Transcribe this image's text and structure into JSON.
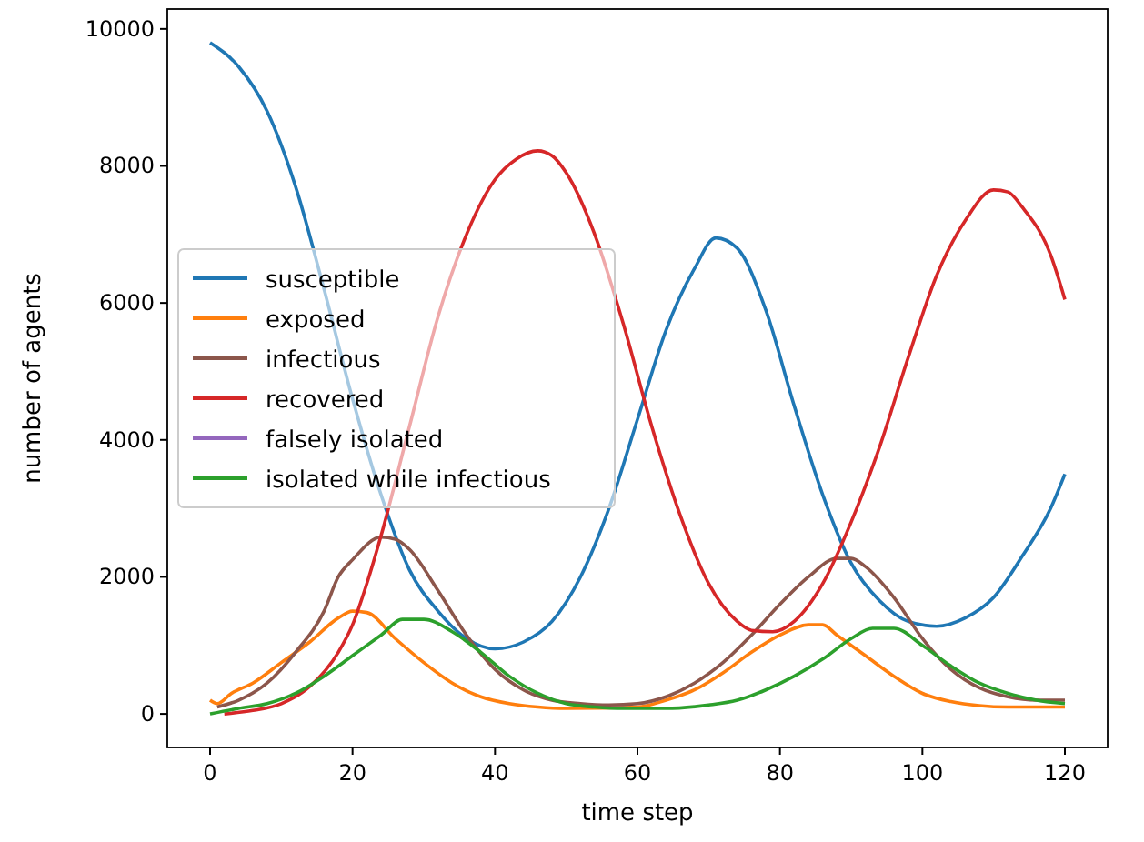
{
  "chart_data": {
    "type": "line",
    "xlabel": "time step",
    "ylabel": "number of agents",
    "xlim": [
      -6,
      126
    ],
    "ylim": [
      -490,
      10290
    ],
    "xticks": [
      0,
      20,
      40,
      60,
      80,
      100,
      120
    ],
    "yticks": [
      0,
      2000,
      4000,
      6000,
      8000,
      10000
    ],
    "legend": "center left",
    "grid": false,
    "series": [
      {
        "name": "susceptible",
        "color": "#1f77b4",
        "x": [
          0,
          4,
          8,
          12,
          16,
          20,
          24,
          28,
          32,
          36,
          40,
          44,
          48,
          52,
          56,
          60,
          64,
          68,
          71,
          74,
          78,
          82,
          86,
          90,
          94,
          98,
          102,
          106,
          110,
          114,
          118,
          120
        ],
        "values": [
          9800,
          9450,
          8800,
          7700,
          6200,
          4600,
          3200,
          2100,
          1500,
          1100,
          950,
          1050,
          1350,
          2000,
          3000,
          4300,
          5600,
          6500,
          6950,
          6800,
          5900,
          4500,
          3200,
          2200,
          1650,
          1350,
          1280,
          1400,
          1700,
          2300,
          3000,
          3500
        ]
      },
      {
        "name": "exposed",
        "color": "#ff7f0e",
        "x": [
          0,
          1,
          3,
          6,
          10,
          14,
          18,
          20,
          22,
          26,
          30,
          34,
          38,
          42,
          46,
          50,
          60,
          64,
          68,
          72,
          76,
          80,
          84,
          86,
          88,
          92,
          96,
          100,
          104,
          108,
          112,
          120
        ],
        "values": [
          200,
          150,
          300,
          450,
          750,
          1050,
          1400,
          1500,
          1480,
          1100,
          750,
          450,
          250,
          150,
          100,
          80,
          100,
          200,
          350,
          600,
          900,
          1150,
          1300,
          1300,
          1150,
          850,
          550,
          300,
          180,
          120,
          100,
          100
        ]
      },
      {
        "name": "infectious",
        "color": "#8c564b",
        "x": [
          1,
          4,
          8,
          12,
          16,
          18,
          20,
          24,
          26,
          28,
          32,
          36,
          40,
          44,
          48,
          52,
          56,
          60,
          64,
          68,
          72,
          76,
          80,
          84,
          88,
          90,
          92,
          96,
          100,
          104,
          108,
          112,
          116,
          120
        ],
        "values": [
          100,
          200,
          450,
          900,
          1500,
          2000,
          2250,
          2580,
          2550,
          2400,
          1800,
          1150,
          650,
          350,
          200,
          150,
          130,
          150,
          250,
          450,
          750,
          1150,
          1600,
          2000,
          2270,
          2270,
          2150,
          1700,
          1100,
          650,
          380,
          250,
          200,
          200
        ]
      },
      {
        "name": "recovered",
        "color": "#d62728",
        "x": [
          2,
          6,
          10,
          14,
          18,
          20,
          22,
          24,
          28,
          32,
          36,
          40,
          43,
          46,
          48,
          50,
          54,
          58,
          62,
          66,
          70,
          74,
          76,
          79,
          82,
          86,
          90,
          94,
          98,
          102,
          106,
          110,
          112,
          114,
          118,
          120
        ],
        "values": [
          0,
          50,
          150,
          400,
          900,
          1300,
          1900,
          2600,
          4200,
          5800,
          7000,
          7800,
          8100,
          8220,
          8150,
          7900,
          7000,
          5700,
          4200,
          2900,
          1900,
          1350,
          1220,
          1200,
          1350,
          1900,
          2800,
          3900,
          5200,
          6400,
          7200,
          7650,
          7620,
          7400,
          6700,
          6050
        ]
      },
      {
        "name": "falsely isolated",
        "color": "#9467bd"
      },
      {
        "name": "isolated while infectious",
        "color": "#2ca02c",
        "x": [
          0,
          4,
          8,
          12,
          16,
          20,
          24,
          27,
          30,
          34,
          38,
          42,
          46,
          50,
          54,
          58,
          64,
          70,
          74,
          78,
          82,
          86,
          90,
          93,
          96,
          100,
          104,
          108,
          112,
          116,
          120
        ],
        "values": [
          0,
          80,
          150,
          300,
          550,
          850,
          1150,
          1380,
          1380,
          1200,
          900,
          550,
          300,
          150,
          100,
          80,
          80,
          130,
          200,
          350,
          550,
          800,
          1100,
          1250,
          1250,
          1000,
          700,
          450,
          300,
          200,
          150
        ]
      }
    ]
  }
}
